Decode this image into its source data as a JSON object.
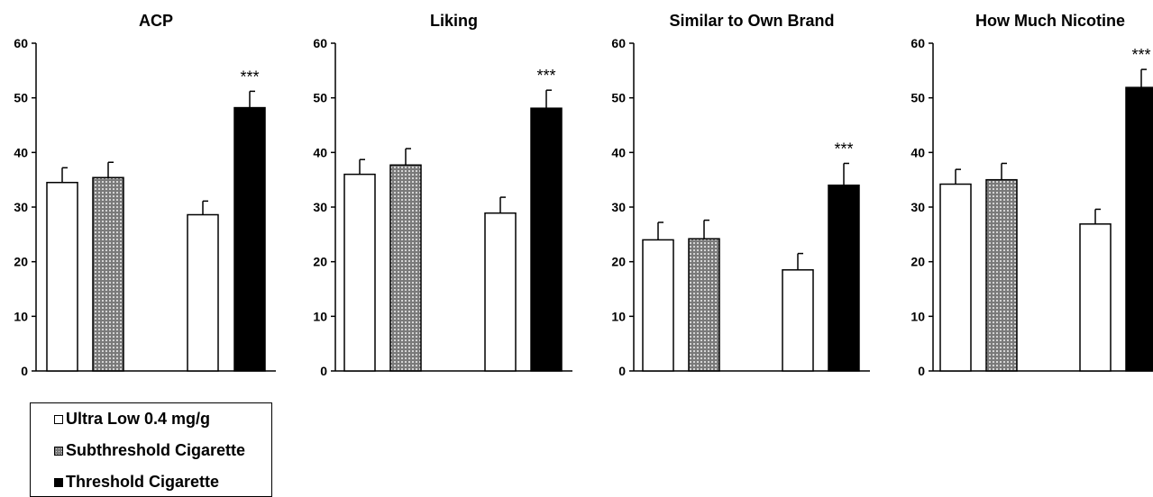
{
  "chart_data": [
    {
      "type": "bar",
      "title": "ACP",
      "ylim": [
        0,
        60
      ],
      "yticks": [
        0,
        10,
        20,
        30,
        40,
        50,
        60
      ],
      "grid": false,
      "bars": [
        {
          "series": "Ultra Low 0.4 mg/g",
          "value": 34.5,
          "error": 2.7,
          "annotation": ""
        },
        {
          "series": "Subthreshold Cigarette",
          "value": 35.4,
          "error": 2.8,
          "annotation": ""
        },
        {
          "series": "Ultra Low 0.4 mg/g",
          "value": 28.6,
          "error": 2.5,
          "annotation": ""
        },
        {
          "series": "Threshold Cigarette",
          "value": 48.2,
          "error": 3.0,
          "annotation": "***"
        }
      ]
    },
    {
      "type": "bar",
      "title": "Liking",
      "ylim": [
        0,
        60
      ],
      "yticks": [
        0,
        10,
        20,
        30,
        40,
        50,
        60
      ],
      "grid": false,
      "bars": [
        {
          "series": "Ultra Low 0.4 mg/g",
          "value": 36.0,
          "error": 2.7,
          "annotation": ""
        },
        {
          "series": "Subthreshold Cigarette",
          "value": 37.7,
          "error": 3.0,
          "annotation": ""
        },
        {
          "series": "Ultra Low 0.4 mg/g",
          "value": 28.9,
          "error": 2.9,
          "annotation": ""
        },
        {
          "series": "Threshold Cigarette",
          "value": 48.1,
          "error": 3.3,
          "annotation": "***"
        }
      ]
    },
    {
      "type": "bar",
      "title": "Similar to Own Brand",
      "ylim": [
        0,
        60
      ],
      "yticks": [
        0,
        10,
        20,
        30,
        40,
        50,
        60
      ],
      "grid": false,
      "bars": [
        {
          "series": "Ultra Low 0.4 mg/g",
          "value": 24.0,
          "error": 3.2,
          "annotation": ""
        },
        {
          "series": "Subthreshold Cigarette",
          "value": 24.2,
          "error": 3.4,
          "annotation": ""
        },
        {
          "series": "Ultra Low 0.4 mg/g",
          "value": 18.5,
          "error": 3.0,
          "annotation": ""
        },
        {
          "series": "Threshold Cigarette",
          "value": 34.0,
          "error": 4.0,
          "annotation": "***"
        }
      ]
    },
    {
      "type": "bar",
      "title": "How Much Nicotine",
      "ylim": [
        0,
        60
      ],
      "yticks": [
        0,
        10,
        20,
        30,
        40,
        50,
        60
      ],
      "grid": false,
      "bars": [
        {
          "series": "Ultra Low 0.4 mg/g",
          "value": 34.2,
          "error": 2.7,
          "annotation": ""
        },
        {
          "series": "Subthreshold Cigarette",
          "value": 35.0,
          "error": 3.0,
          "annotation": ""
        },
        {
          "series": "Ultra Low 0.4 mg/g",
          "value": 26.9,
          "error": 2.7,
          "annotation": ""
        },
        {
          "series": "Threshold Cigarette",
          "value": 51.9,
          "error": 3.3,
          "annotation": "***"
        }
      ]
    }
  ],
  "legend": {
    "placement": "bottom-left",
    "items": [
      {
        "label": "Ultra Low 0.4 mg/g",
        "fill": "white"
      },
      {
        "label": "Subthreshold Cigarette",
        "fill": "crosshatch"
      },
      {
        "label": "Threshold Cigarette",
        "fill": "black"
      }
    ]
  },
  "colors": {
    "axis": "#000000",
    "threshold": "#000000",
    "ultra_low": "#ffffff",
    "subthreshold": "#8c8c8c"
  }
}
